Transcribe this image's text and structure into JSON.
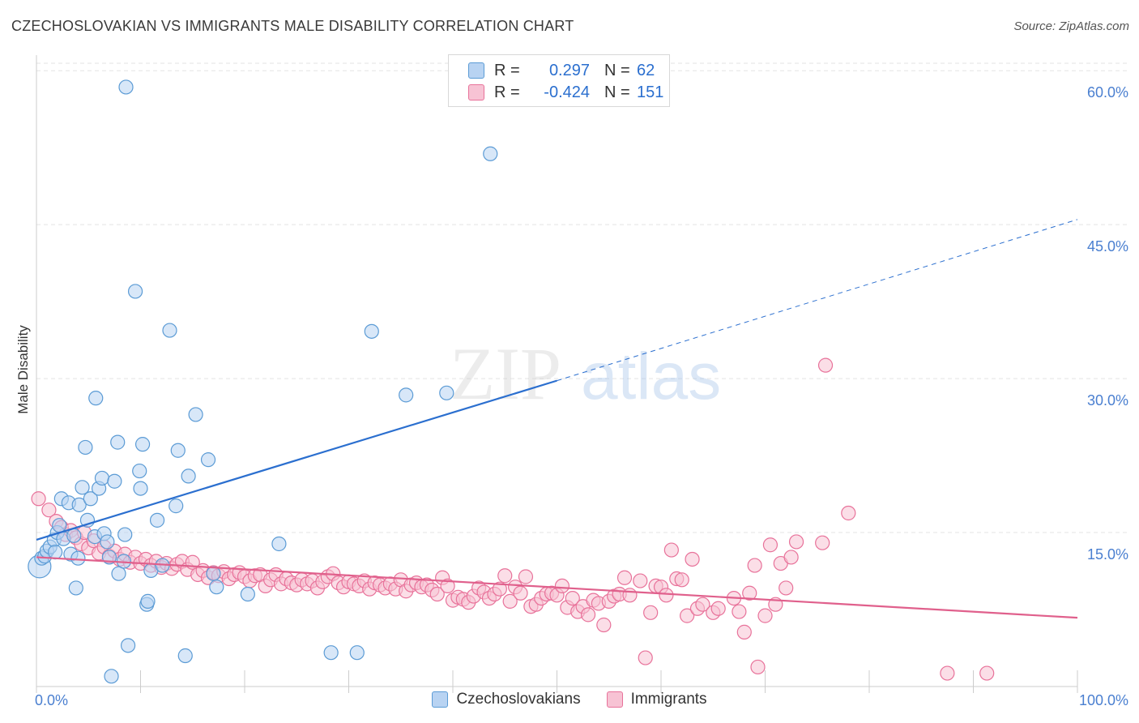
{
  "title": "CZECHOSLOVAKIAN VS IMMIGRANTS MALE DISABILITY CORRELATION CHART",
  "source": "Source: ZipAtlas.com",
  "watermark": {
    "zip": "ZIP",
    "atlas": "atlas"
  },
  "colors": {
    "blue": "#5b9bd5",
    "blue_fill": "#b8d3f2",
    "blue_line": "#2b6fcf",
    "pink": "#e8729a",
    "pink_fill": "#f7c3d4",
    "pink_line": "#e0608c",
    "tick_text": "#4a7fd0",
    "grid": "#e3e3e3"
  },
  "legend": {
    "rows": [
      {
        "r_label": "R =",
        "r_value": "0.297",
        "n_label": "N =",
        "n_value": "62",
        "color": "blue"
      },
      {
        "r_label": "R =",
        "r_value": "-0.424",
        "n_label": "N =",
        "n_value": "151",
        "color": "pink"
      }
    ]
  },
  "bottom_legend": [
    {
      "label": "Czechoslovakians",
      "color": "blue"
    },
    {
      "label": "Immigrants",
      "color": "pink"
    }
  ],
  "chart_data": {
    "type": "scatter",
    "title": "CZECHOSLOVAKIAN VS IMMIGRANTS MALE DISABILITY CORRELATION CHART",
    "xlabel": "",
    "ylabel": "Male Disability",
    "xlim": [
      0,
      100
    ],
    "ylim": [
      0,
      61.2
    ],
    "x_tick_labels": [
      {
        "value": 0,
        "label": "0.0%"
      },
      {
        "value": 100,
        "label": "100.0%"
      }
    ],
    "y_ticks": [
      {
        "value": 15,
        "label": "15.0%"
      },
      {
        "value": 30,
        "label": "30.0%"
      },
      {
        "value": 45,
        "label": "45.0%"
      },
      {
        "value": 60,
        "label": "60.0%"
      }
    ],
    "x_minor_ticks": [
      0,
      10,
      20,
      30,
      40,
      50,
      60,
      70,
      80,
      90,
      100
    ],
    "grid": true,
    "legend_position": "top-center",
    "series": [
      {
        "name": "Czechoslovakians",
        "color": "blue",
        "trend": {
          "x0": 0,
          "y0": 14.3,
          "x1": 50,
          "y1": 29.8,
          "dash_to_x": 100,
          "dash_to_y": 45.5
        },
        "points": [
          {
            "x": 0.3,
            "y": 11.7,
            "r": 14
          },
          {
            "x": 0.5,
            "y": 12.5
          },
          {
            "x": 0.8,
            "y": 12.7
          },
          {
            "x": 1.0,
            "y": 13.2
          },
          {
            "x": 1.3,
            "y": 13.6
          },
          {
            "x": 1.7,
            "y": 14.3
          },
          {
            "x": 1.8,
            "y": 13.1
          },
          {
            "x": 2.0,
            "y": 15.0
          },
          {
            "x": 2.2,
            "y": 15.7
          },
          {
            "x": 2.4,
            "y": 18.3
          },
          {
            "x": 2.6,
            "y": 14.4
          },
          {
            "x": 3.1,
            "y": 17.9
          },
          {
            "x": 3.3,
            "y": 12.9
          },
          {
            "x": 3.6,
            "y": 14.7
          },
          {
            "x": 3.8,
            "y": 9.6
          },
          {
            "x": 4.0,
            "y": 12.5
          },
          {
            "x": 4.1,
            "y": 17.7
          },
          {
            "x": 4.4,
            "y": 19.4
          },
          {
            "x": 4.7,
            "y": 23.3
          },
          {
            "x": 4.9,
            "y": 16.2
          },
          {
            "x": 5.2,
            "y": 18.3
          },
          {
            "x": 5.6,
            "y": 14.6
          },
          {
            "x": 5.7,
            "y": 28.1
          },
          {
            "x": 6.0,
            "y": 19.3
          },
          {
            "x": 6.3,
            "y": 20.3
          },
          {
            "x": 6.5,
            "y": 14.9
          },
          {
            "x": 6.8,
            "y": 14.1
          },
          {
            "x": 7.0,
            "y": 12.6
          },
          {
            "x": 7.2,
            "y": 1.0
          },
          {
            "x": 7.5,
            "y": 20.0
          },
          {
            "x": 7.8,
            "y": 23.8
          },
          {
            "x": 7.9,
            "y": 11.0
          },
          {
            "x": 8.4,
            "y": 12.2
          },
          {
            "x": 8.5,
            "y": 14.8
          },
          {
            "x": 8.6,
            "y": 58.4
          },
          {
            "x": 8.8,
            "y": 4.0
          },
          {
            "x": 9.5,
            "y": 38.5
          },
          {
            "x": 9.9,
            "y": 21.0
          },
          {
            "x": 10.0,
            "y": 19.3
          },
          {
            "x": 10.2,
            "y": 23.6
          },
          {
            "x": 10.6,
            "y": 8.0
          },
          {
            "x": 10.7,
            "y": 8.3
          },
          {
            "x": 11.0,
            "y": 11.3
          },
          {
            "x": 11.6,
            "y": 16.2
          },
          {
            "x": 12.1,
            "y": 11.8
          },
          {
            "x": 12.8,
            "y": 34.7
          },
          {
            "x": 13.4,
            "y": 17.6
          },
          {
            "x": 13.6,
            "y": 23.0
          },
          {
            "x": 14.3,
            "y": 3.0
          },
          {
            "x": 14.6,
            "y": 20.5
          },
          {
            "x": 15.3,
            "y": 26.5
          },
          {
            "x": 16.5,
            "y": 22.1
          },
          {
            "x": 17.0,
            "y": 11.0
          },
          {
            "x": 17.3,
            "y": 9.7
          },
          {
            "x": 20.3,
            "y": 9.0
          },
          {
            "x": 23.3,
            "y": 13.9
          },
          {
            "x": 28.3,
            "y": 3.3
          },
          {
            "x": 30.8,
            "y": 3.3
          },
          {
            "x": 32.2,
            "y": 34.6
          },
          {
            "x": 35.5,
            "y": 28.4
          },
          {
            "x": 39.4,
            "y": 28.6
          },
          {
            "x": 43.6,
            "y": 51.9
          }
        ]
      },
      {
        "name": "Immigrants",
        "color": "pink",
        "trend": {
          "x0": 0,
          "y0": 12.6,
          "x1": 100,
          "y1": 6.7
        },
        "points": [
          {
            "x": 0.2,
            "y": 18.3
          },
          {
            "x": 1.2,
            "y": 17.2
          },
          {
            "x": 1.9,
            "y": 16.1
          },
          {
            "x": 2.4,
            "y": 15.5
          },
          {
            "x": 2.8,
            "y": 14.8
          },
          {
            "x": 3.3,
            "y": 15.2
          },
          {
            "x": 3.8,
            "y": 14.5
          },
          {
            "x": 4.3,
            "y": 13.9
          },
          {
            "x": 4.6,
            "y": 15.0
          },
          {
            "x": 5.0,
            "y": 13.5
          },
          {
            "x": 5.5,
            "y": 14.2
          },
          {
            "x": 6.0,
            "y": 13.0
          },
          {
            "x": 6.5,
            "y": 13.6
          },
          {
            "x": 7.0,
            "y": 12.7
          },
          {
            "x": 7.5,
            "y": 13.2
          },
          {
            "x": 8.0,
            "y": 12.4
          },
          {
            "x": 8.5,
            "y": 12.9
          },
          {
            "x": 9.0,
            "y": 12.1
          },
          {
            "x": 9.5,
            "y": 12.6
          },
          {
            "x": 10.0,
            "y": 12.0
          },
          {
            "x": 10.5,
            "y": 12.4
          },
          {
            "x": 11.0,
            "y": 11.8
          },
          {
            "x": 11.5,
            "y": 12.2
          },
          {
            "x": 12.0,
            "y": 11.6
          },
          {
            "x": 12.5,
            "y": 12.0
          },
          {
            "x": 13.0,
            "y": 11.5
          },
          {
            "x": 13.5,
            "y": 11.9
          },
          {
            "x": 14.0,
            "y": 12.2
          },
          {
            "x": 14.5,
            "y": 11.4
          },
          {
            "x": 15.0,
            "y": 12.1
          },
          {
            "x": 15.5,
            "y": 10.9
          },
          {
            "x": 16.0,
            "y": 11.3
          },
          {
            "x": 16.5,
            "y": 10.6
          },
          {
            "x": 17.0,
            "y": 11.1
          },
          {
            "x": 17.5,
            "y": 10.8
          },
          {
            "x": 18.0,
            "y": 11.2
          },
          {
            "x": 18.5,
            "y": 10.5
          },
          {
            "x": 19.0,
            "y": 10.9
          },
          {
            "x": 19.5,
            "y": 11.1
          },
          {
            "x": 20.0,
            "y": 10.7
          },
          {
            "x": 20.5,
            "y": 10.3
          },
          {
            "x": 21.0,
            "y": 10.8
          },
          {
            "x": 21.5,
            "y": 10.9
          },
          {
            "x": 22.0,
            "y": 9.8
          },
          {
            "x": 22.5,
            "y": 10.4
          },
          {
            "x": 23.0,
            "y": 10.9
          },
          {
            "x": 23.5,
            "y": 10.0
          },
          {
            "x": 24.0,
            "y": 10.5
          },
          {
            "x": 24.5,
            "y": 10.1
          },
          {
            "x": 25.0,
            "y": 9.9
          },
          {
            "x": 25.5,
            "y": 10.4
          },
          {
            "x": 26.0,
            "y": 10.0
          },
          {
            "x": 26.5,
            "y": 10.3
          },
          {
            "x": 27.0,
            "y": 9.6
          },
          {
            "x": 27.5,
            "y": 10.2
          },
          {
            "x": 28.0,
            "y": 10.7
          },
          {
            "x": 28.5,
            "y": 11.0
          },
          {
            "x": 29.0,
            "y": 10.1
          },
          {
            "x": 29.5,
            "y": 9.7
          },
          {
            "x": 30.0,
            "y": 10.2
          },
          {
            "x": 30.5,
            "y": 10.0
          },
          {
            "x": 31.0,
            "y": 9.8
          },
          {
            "x": 31.5,
            "y": 10.3
          },
          {
            "x": 32.0,
            "y": 9.5
          },
          {
            "x": 32.5,
            "y": 10.1
          },
          {
            "x": 33.0,
            "y": 9.9
          },
          {
            "x": 33.5,
            "y": 9.6
          },
          {
            "x": 34.0,
            "y": 10.0
          },
          {
            "x": 34.5,
            "y": 9.5
          },
          {
            "x": 35.0,
            "y": 10.4
          },
          {
            "x": 35.5,
            "y": 9.3
          },
          {
            "x": 36.0,
            "y": 9.9
          },
          {
            "x": 36.5,
            "y": 10.1
          },
          {
            "x": 37.0,
            "y": 9.7
          },
          {
            "x": 37.5,
            "y": 9.9
          },
          {
            "x": 38.0,
            "y": 9.4
          },
          {
            "x": 38.5,
            "y": 9.0
          },
          {
            "x": 39.0,
            "y": 10.6
          },
          {
            "x": 39.5,
            "y": 9.8
          },
          {
            "x": 40.0,
            "y": 8.4
          },
          {
            "x": 40.5,
            "y": 8.7
          },
          {
            "x": 41.0,
            "y": 8.5
          },
          {
            "x": 41.5,
            "y": 8.2
          },
          {
            "x": 42.0,
            "y": 8.8
          },
          {
            "x": 42.5,
            "y": 9.6
          },
          {
            "x": 43.0,
            "y": 9.2
          },
          {
            "x": 43.5,
            "y": 8.6
          },
          {
            "x": 44.0,
            "y": 9.0
          },
          {
            "x": 44.5,
            "y": 9.5
          },
          {
            "x": 45.0,
            "y": 10.8
          },
          {
            "x": 45.5,
            "y": 8.3
          },
          {
            "x": 46.0,
            "y": 9.7
          },
          {
            "x": 46.5,
            "y": 9.1
          },
          {
            "x": 47.0,
            "y": 10.7
          },
          {
            "x": 47.5,
            "y": 7.8
          },
          {
            "x": 48.0,
            "y": 8.0
          },
          {
            "x": 48.5,
            "y": 8.6
          },
          {
            "x": 49.0,
            "y": 9.0
          },
          {
            "x": 49.5,
            "y": 9.1
          },
          {
            "x": 50.0,
            "y": 8.9
          },
          {
            "x": 50.5,
            "y": 9.8
          },
          {
            "x": 51.0,
            "y": 7.7
          },
          {
            "x": 51.5,
            "y": 8.6
          },
          {
            "x": 52.0,
            "y": 7.3
          },
          {
            "x": 52.5,
            "y": 7.8
          },
          {
            "x": 53.0,
            "y": 7.0
          },
          {
            "x": 53.5,
            "y": 8.4
          },
          {
            "x": 54.0,
            "y": 8.1
          },
          {
            "x": 54.5,
            "y": 6.0
          },
          {
            "x": 55.0,
            "y": 8.3
          },
          {
            "x": 55.5,
            "y": 8.8
          },
          {
            "x": 56.0,
            "y": 9.0
          },
          {
            "x": 56.5,
            "y": 10.6
          },
          {
            "x": 57.0,
            "y": 8.9
          },
          {
            "x": 58.0,
            "y": 10.3
          },
          {
            "x": 59.0,
            "y": 7.2
          },
          {
            "x": 59.5,
            "y": 9.8
          },
          {
            "x": 60.0,
            "y": 9.7
          },
          {
            "x": 60.5,
            "y": 8.9
          },
          {
            "x": 61.0,
            "y": 13.3
          },
          {
            "x": 61.5,
            "y": 10.5
          },
          {
            "x": 62.0,
            "y": 10.4
          },
          {
            "x": 62.5,
            "y": 6.9
          },
          {
            "x": 63.0,
            "y": 12.4
          },
          {
            "x": 63.5,
            "y": 7.6
          },
          {
            "x": 64.0,
            "y": 8.0
          },
          {
            "x": 65.0,
            "y": 7.2
          },
          {
            "x": 65.5,
            "y": 7.6
          },
          {
            "x": 67.0,
            "y": 8.6
          },
          {
            "x": 67.5,
            "y": 7.3
          },
          {
            "x": 68.0,
            "y": 5.3
          },
          {
            "x": 68.5,
            "y": 9.1
          },
          {
            "x": 69.0,
            "y": 11.8
          },
          {
            "x": 70.0,
            "y": 6.9
          },
          {
            "x": 70.5,
            "y": 13.8
          },
          {
            "x": 71.0,
            "y": 8.0
          },
          {
            "x": 71.5,
            "y": 12.0
          },
          {
            "x": 72.0,
            "y": 9.6
          },
          {
            "x": 72.5,
            "y": 12.6
          },
          {
            "x": 73.0,
            "y": 14.1
          },
          {
            "x": 75.5,
            "y": 14.0
          },
          {
            "x": 78.0,
            "y": 16.9
          },
          {
            "x": 58.5,
            "y": 2.8
          },
          {
            "x": 69.3,
            "y": 1.9
          },
          {
            "x": 75.8,
            "y": 31.3
          },
          {
            "x": 87.5,
            "y": 1.3
          },
          {
            "x": 91.3,
            "y": 1.3
          }
        ]
      }
    ]
  }
}
